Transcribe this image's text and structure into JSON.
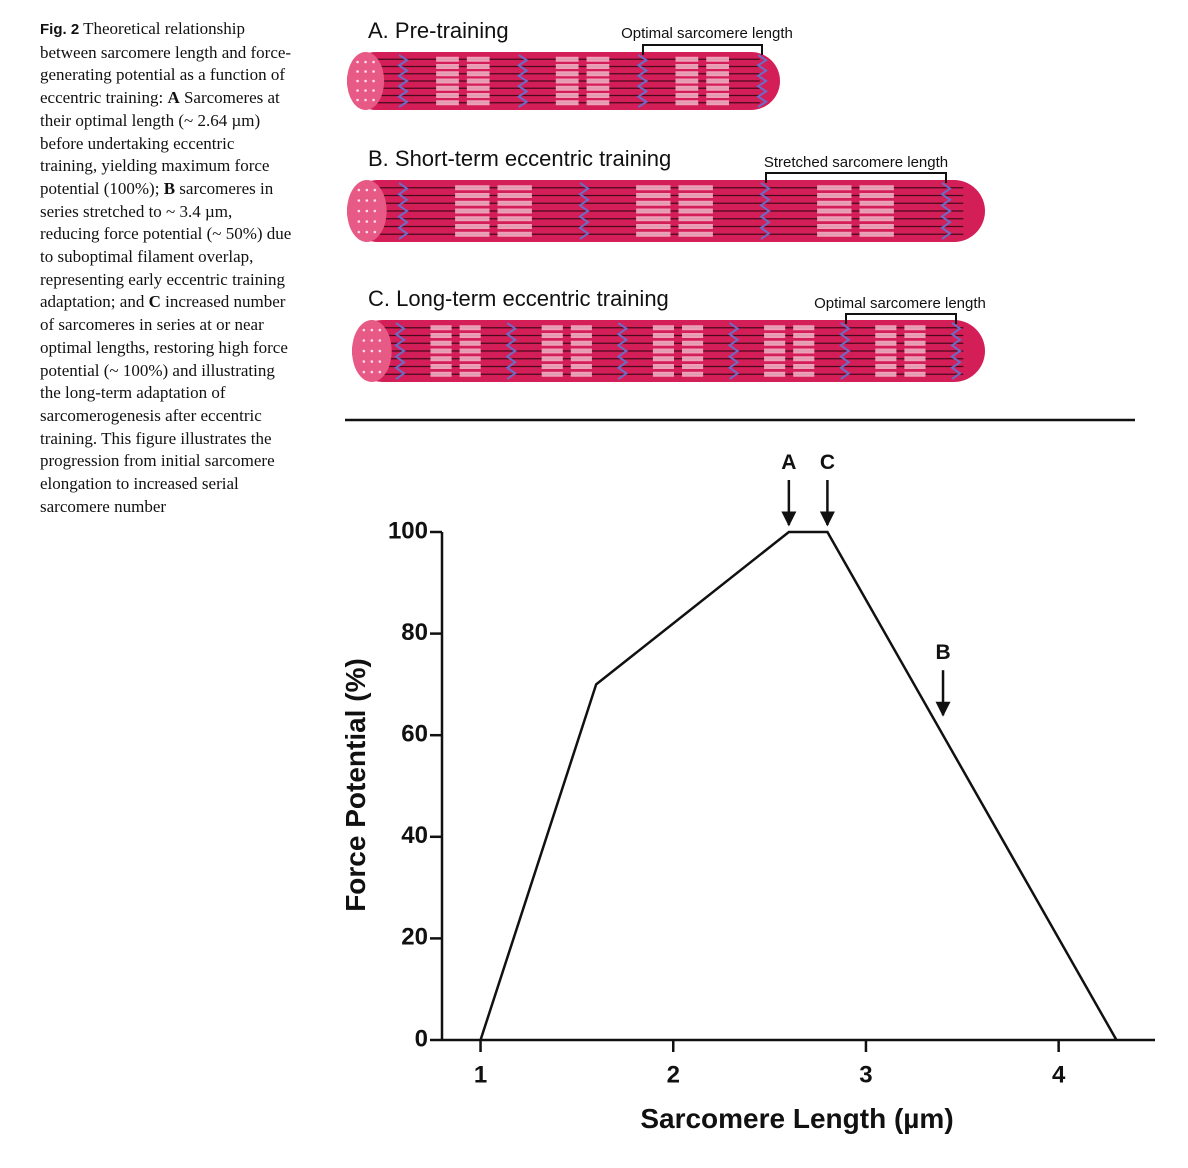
{
  "caption": [
    "Fig. 2",
    " Theoretical relationship between sarcomere length and force-generating potential as a function of eccentric training: ",
    "A",
    " Sarcomeres at their optimal length (~ 2.64 µm) before undertaking eccentric training, yielding maximum force potential (100%); ",
    "B",
    " sarcomeres in series stretched to ~ 3.4 µm, reducing force potential (~ 50%) due to suboptimal filament overlap, representing early eccentric training adaptation; and ",
    "C",
    " increased number of sarcomeres in series at or near optimal lengths, restoring high force potential (~ 100%) and illustrating the long-term adaptation of sarcomerogenesis after eccentric training. This figure illustrates the progression from initial sarcomere elongation to increased serial sarcomere number"
  ],
  "panels": [
    {
      "title": "A. Pre-training",
      "label": "Optimal sarcomere length"
    },
    {
      "title": "B. Short-term eccentric training",
      "label": "Stretched sarcomere length"
    },
    {
      "title": "C. Long-term eccentric training",
      "label": "Optimal sarcomere length"
    }
  ],
  "chart_data": {
    "type": "line",
    "x": [
      1,
      1.6,
      2.6,
      2.8,
      4.3
    ],
    "values": [
      0,
      70,
      100,
      100,
      0
    ],
    "color": "#111111",
    "xlabel": "Sarcomere Length (µm)",
    "ylabel": "Force Potential (%)",
    "xlim": [
      0.8,
      4.5
    ],
    "ylim": [
      0,
      100
    ],
    "xticks": [
      1,
      2,
      3,
      4
    ],
    "yticks": [
      0,
      20,
      40,
      60,
      80,
      100
    ],
    "annotations": [
      {
        "text": "A",
        "x": 2.6
      },
      {
        "text": "C",
        "x": 2.8
      },
      {
        "text": "B",
        "x": 3.4
      }
    ]
  }
}
